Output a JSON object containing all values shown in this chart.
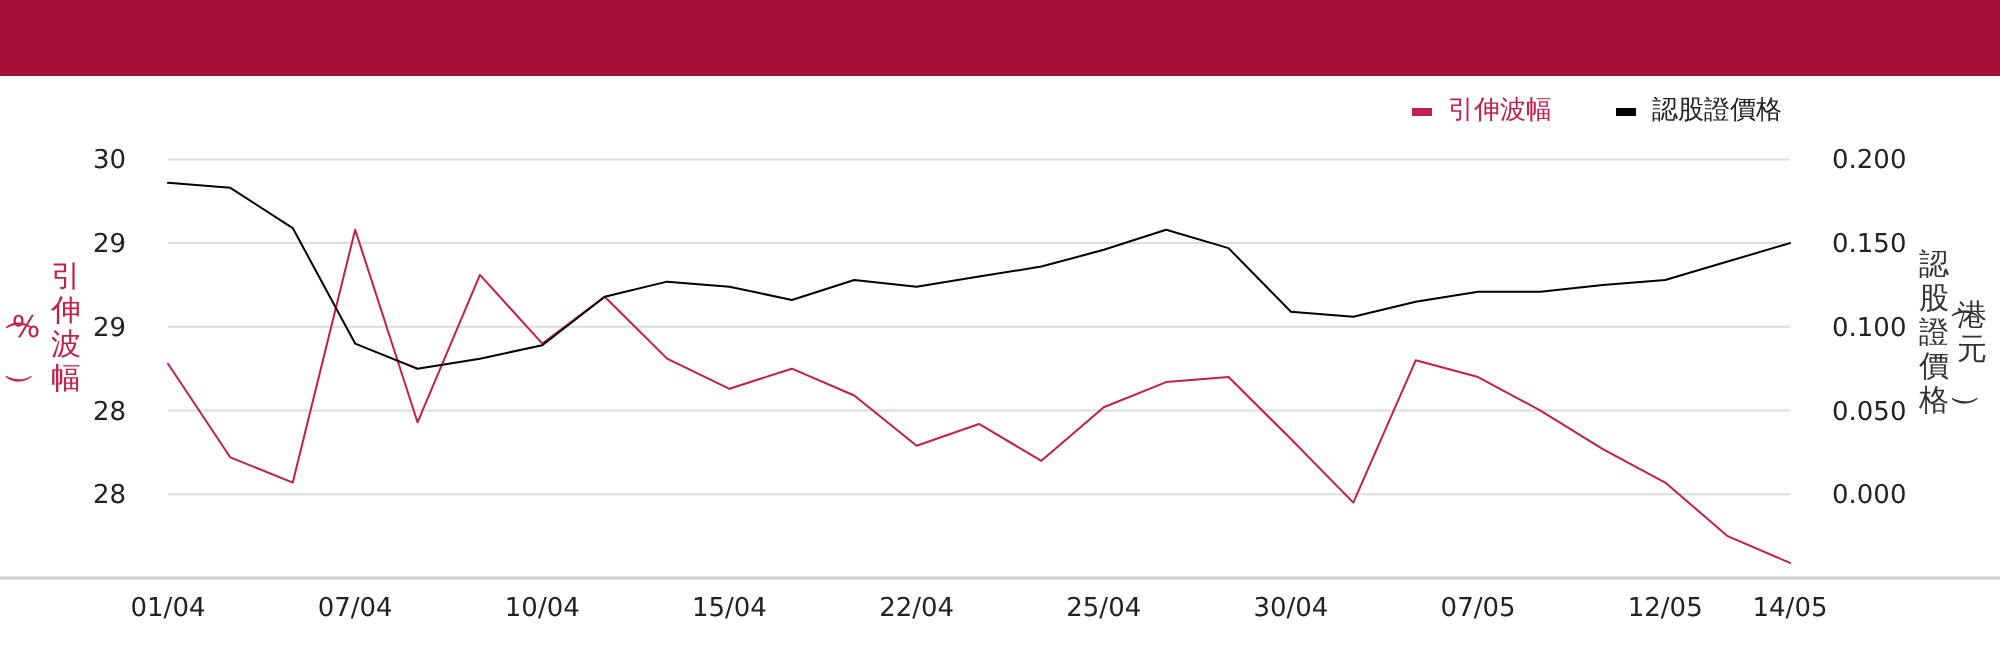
{
  "chart_data": {
    "type": "line",
    "categories": [
      "01/04",
      null,
      null,
      "07/04",
      null,
      null,
      "10/04",
      null,
      null,
      "15/04",
      null,
      null,
      "22/04",
      null,
      null,
      "25/04",
      null,
      null,
      "30/04",
      null,
      null,
      "07/05",
      null,
      null,
      "12/05",
      null,
      "14/05"
    ],
    "series": [
      {
        "name": "引伸波幅",
        "color": "#c41e4a",
        "values": [
          28.78,
          28.22,
          28.07,
          29.58,
          28.43,
          29.31,
          28.9,
          29.18,
          28.81,
          28.63,
          28.75,
          28.59,
          28.29,
          28.42,
          28.2,
          28.52,
          28.67,
          28.7,
          28.33,
          27.95,
          28.8,
          28.7,
          28.5,
          28.27,
          28.07,
          27.75,
          27.59
        ]
      },
      {
        "name": "認股證價格",
        "color": "#000000",
        "axis": "y2",
        "values": [
          0.186,
          0.183,
          0.159,
          0.09,
          0.075,
          0.081,
          0.089,
          0.118,
          0.127,
          0.124,
          0.116,
          0.128,
          0.124,
          0.13,
          0.136,
          0.146,
          0.158,
          0.147,
          0.109,
          0.106,
          0.115,
          0.121,
          0.121,
          0.125,
          0.128,
          0.139,
          0.15
        ]
      }
    ],
    "ylabel": "引伸波幅（%）",
    "y2label": "認股證價格（港元）",
    "ylim": [
      27.5,
      30
    ],
    "yticks": [
      30,
      {
        "value": 29.5,
        "label": "29"
      },
      29,
      {
        "value": 28.5,
        "label": "28"
      },
      28
    ],
    "y2lim": [
      -0.05,
      0.2
    ],
    "y2ticks": [
      {
        "value": 0.2,
        "label": "0.200"
      },
      {
        "value": 0.15,
        "label": "0.150"
      },
      {
        "value": 0.1,
        "label": "0.100"
      },
      {
        "value": 0.05,
        "label": "0.050"
      },
      {
        "value": 0,
        "label": "0.000"
      }
    ],
    "grid": "y",
    "legend": "top right",
    "marker": "none",
    "line_style": "solid"
  }
}
